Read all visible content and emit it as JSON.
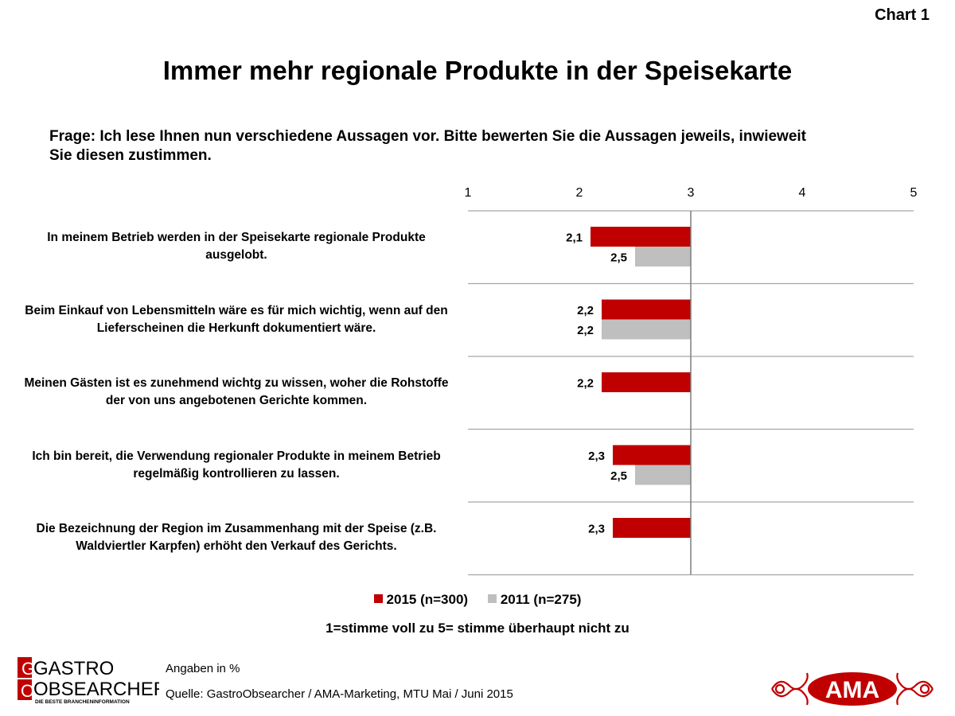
{
  "chart_label": "Chart 1",
  "title": "Immer mehr regionale Produkte in der Speisekarte",
  "question": "Frage: Ich lese Ihnen nun verschiedene Aussagen vor. Bitte bewerten Sie die Aussagen jeweils, inwieweit Sie diesen zustimmen.",
  "legend": {
    "s2015": "2015 (n=300)",
    "s2011": "2011 (n=275)"
  },
  "scale_note": "1=stimme voll zu  5= stimme überhaupt nicht zu",
  "footnote_unit": "Angaben in %",
  "source": "Quelle: GastroObsearcher / AMA-Marketing, MTU Mai / Juni 2015",
  "logo_left": {
    "line1": "GASTRO",
    "line2": "OBSEARCHER",
    "tagline": "DIE BESTE BRANCHENINFORMATION"
  },
  "logo_right": {
    "text": "AMA"
  },
  "colors": {
    "s2015": "#C00000",
    "s2011": "#BFBFBF",
    "grid": "#A6A6A6"
  },
  "chart_data": {
    "type": "bar",
    "orientation": "horizontal",
    "reference_value": 3,
    "xlim": [
      1,
      5
    ],
    "xticks": [
      1,
      2,
      3,
      4,
      5
    ],
    "categories": [
      "In meinem Betrieb werden in der Speisekarte regionale Produkte ausgelobt.",
      "Beim Einkauf von Lebensmitteln wäre es für mich wichtig, wenn auf den Lieferscheinen die Herkunft dokumentiert wäre.",
      "Meinen Gästen ist es zunehmend wichtg zu wissen, woher die Rohstoffe der von uns angebotenen Gerichte kommen.",
      "Ich bin bereit, die Verwendung regionaler Produkte in meinem Betrieb regelmäßig kontrollieren zu lassen.",
      "Die Bezeichnung der Region im Zusammenhang mit der Speise (z.B. Waldviertler Karpfen) erhöht den Verkauf des Gerichts."
    ],
    "series": [
      {
        "name": "2015 (n=300)",
        "values": [
          2.1,
          2.2,
          2.2,
          2.3,
          2.3
        ],
        "labels": [
          "2,1",
          "2,2",
          "2,2",
          "2,3",
          "2,3"
        ]
      },
      {
        "name": "2011 (n=275)",
        "values": [
          2.5,
          2.2,
          null,
          2.5,
          null
        ],
        "labels": [
          "2,5",
          "2,2",
          "",
          "2,5",
          ""
        ]
      }
    ]
  }
}
